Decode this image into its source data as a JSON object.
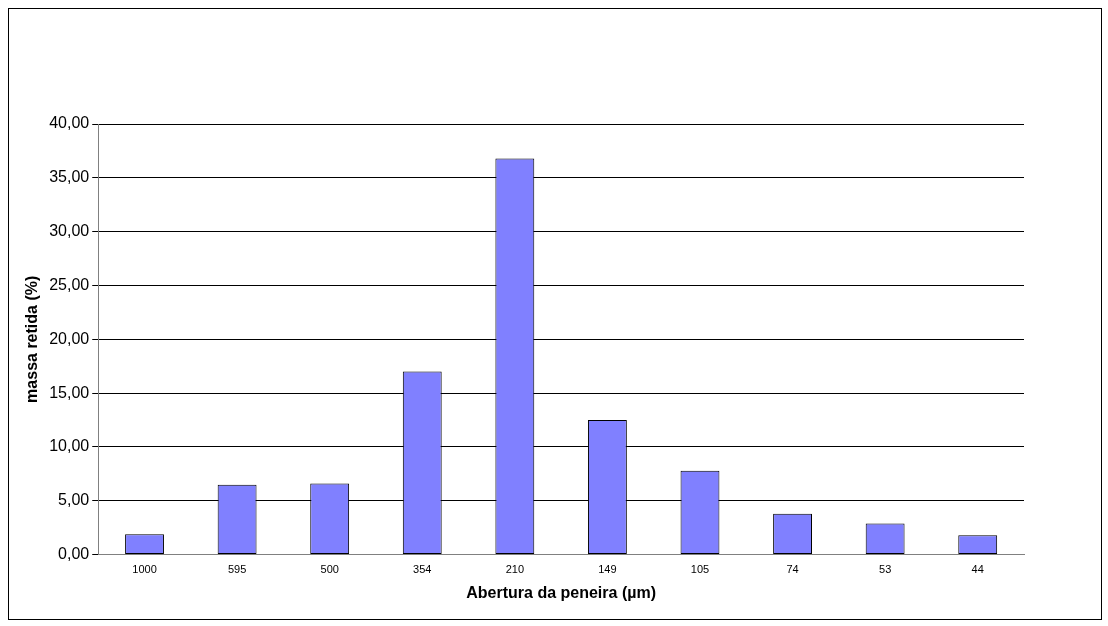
{
  "chart_data": {
    "type": "bar",
    "xlabel": "Abertura da peneira (µm)",
    "ylabel": "massa retida (%)",
    "categories": [
      "1000",
      "595",
      "500",
      "354",
      "210",
      "149",
      "105",
      "74",
      "53",
      "44"
    ],
    "values": [
      1.9,
      6.5,
      6.6,
      17.0,
      36.8,
      12.5,
      7.8,
      3.8,
      2.9,
      1.8
    ],
    "color": "#8080ff",
    "ylim": [
      0,
      40
    ],
    "yticks": [
      {
        "value": 0,
        "label": "0,00"
      },
      {
        "value": 5,
        "label": "5,00"
      },
      {
        "value": 10,
        "label": "10,00"
      },
      {
        "value": 15,
        "label": "15,00"
      },
      {
        "value": 20,
        "label": "20,00"
      },
      {
        "value": 25,
        "label": "25,00"
      },
      {
        "value": 30,
        "label": "30,00"
      },
      {
        "value": 35,
        "label": "35,00"
      },
      {
        "value": 40,
        "label": "40,00"
      }
    ],
    "grid": "y",
    "legend": false
  }
}
